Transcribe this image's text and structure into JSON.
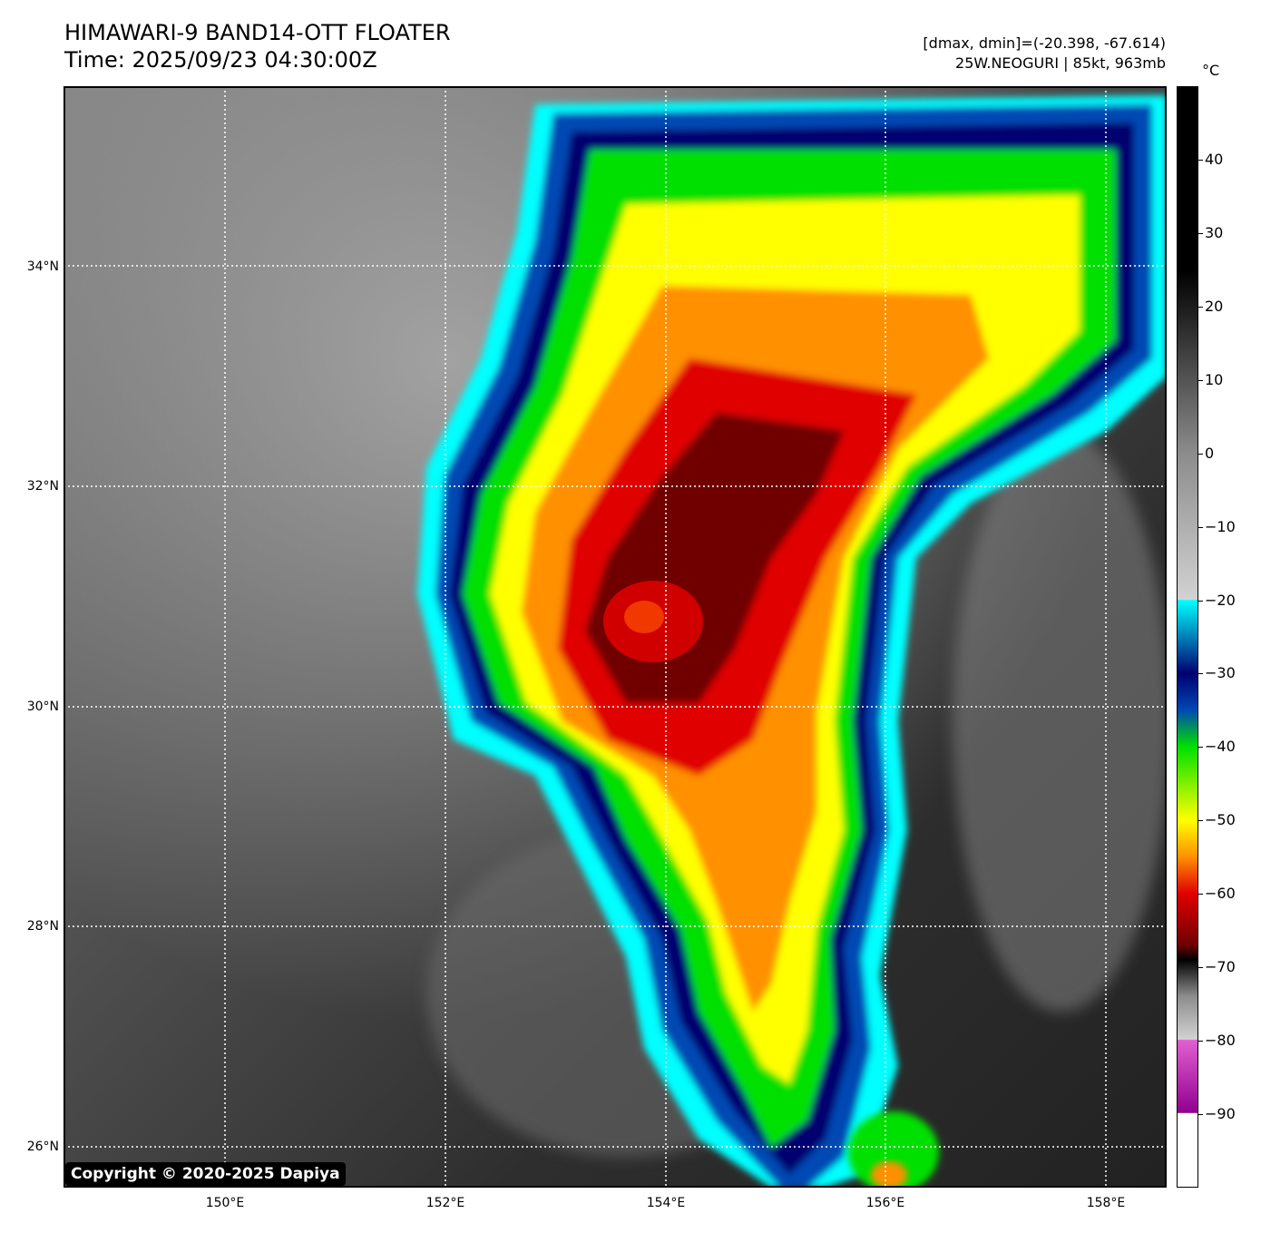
{
  "header": {
    "title_line1": "HIMAWARI-9 BAND14-OTT FLOATER",
    "title_line2": "Time: 2025/09/23 04:30:00Z",
    "range_text": "[dmax, dmin]=(-20.398, -67.614)",
    "storm_text": "25W.NEOGURI | 85kt, 963mb"
  },
  "map": {
    "lat_labels": [
      "34°N",
      "32°N",
      "30°N",
      "28°N",
      "26°N"
    ],
    "lon_labels": [
      "150°E",
      "152°E",
      "154°E",
      "156°E",
      "158°E"
    ],
    "copyright": "Copyright © 2020-2025 Dapiya"
  },
  "colorbar": {
    "unit": "°C",
    "labels": [
      "40",
      "30",
      "20",
      "10",
      "0",
      "−10",
      "−20",
      "−30",
      "−40",
      "−50",
      "−60",
      "−70",
      "−80",
      "−90"
    ],
    "colors": {
      "black": "#000000",
      "gray": "#8c8c8c",
      "light_gray": "#d2d2d2",
      "cyan": "#00ffff",
      "blue": "#0048b4",
      "navy": "#000070",
      "green": "#00e000",
      "yellow": "#ffff00",
      "orange": "#ff9000",
      "red": "#e00000",
      "dark_red": "#700000",
      "magenta": "#e060d0",
      "purple": "#900090",
      "white": "#ffffff"
    }
  }
}
